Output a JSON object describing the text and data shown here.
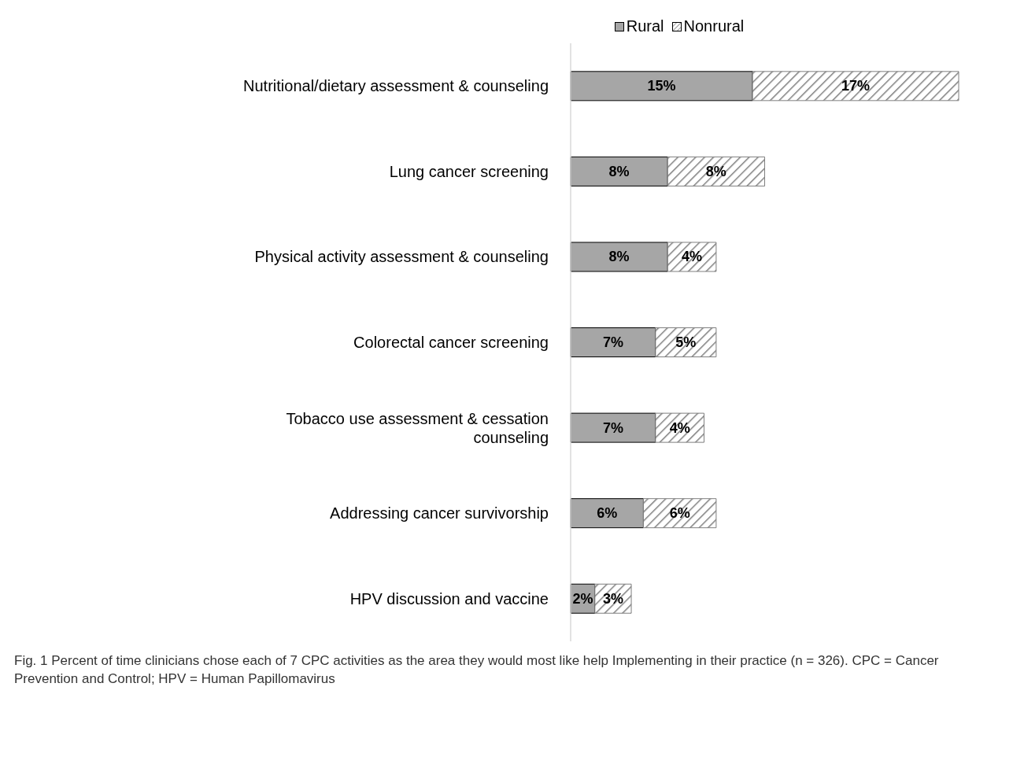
{
  "chart_data": {
    "type": "bar",
    "orientation": "horizontal",
    "stacked": true,
    "categories": [
      "Nutritional/dietary assessment & counseling",
      "Lung cancer screening",
      "Physical activity assessment & counseling",
      "Colorectal cancer screening",
      "Tobacco use assessment & cessation counseling",
      "Addressing cancer survivorship",
      "HPV discussion and vaccine"
    ],
    "series": [
      {
        "name": "Rural",
        "color": "#a6a6a6",
        "values": [
          15,
          8,
          8,
          7,
          7,
          6,
          2
        ],
        "value_labels": [
          "15%",
          "8%",
          "8%",
          "7%",
          "7%",
          "6%",
          "2%"
        ]
      },
      {
        "name": "Nonrural",
        "color": "#7f7f7f",
        "values": [
          17,
          8,
          4,
          5,
          4,
          6,
          3
        ],
        "value_labels": [
          "17%",
          "8%",
          "4%",
          "5%",
          "4%",
          "6%",
          "3%"
        ]
      }
    ],
    "legend": "top",
    "grid": false,
    "annotations": [
      "Fig. 1  Percent of time clinicians chose each of 7 CPC activities as the area they would most like help Implementing in their practice (n = 326). CPC = Cancer Prevention and Control; HPV = Human Papillomavirus"
    ]
  }
}
